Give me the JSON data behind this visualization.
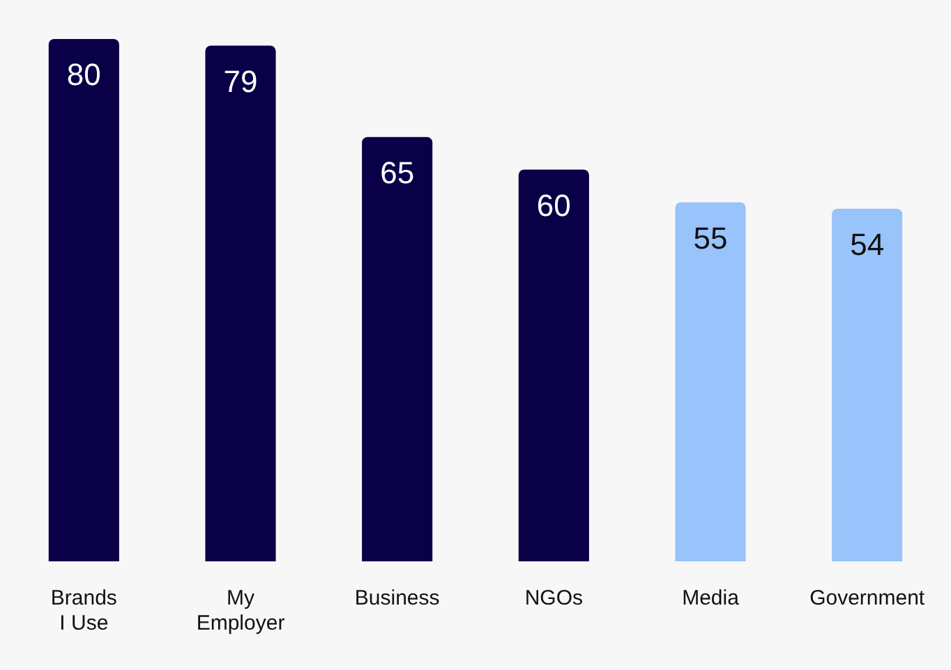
{
  "chart_data": {
    "type": "bar",
    "categories": [
      "Brands I Use",
      "My Employer",
      "Business",
      "NGOs",
      "Media",
      "Government"
    ],
    "values": [
      80,
      79,
      65,
      60,
      55,
      54
    ],
    "colors": [
      "#0a0048",
      "#0a0048",
      "#0a0048",
      "#0a0048",
      "#99c3fb",
      "#99c3fb"
    ],
    "data_labels": true,
    "grid": false,
    "legend": false
  }
}
